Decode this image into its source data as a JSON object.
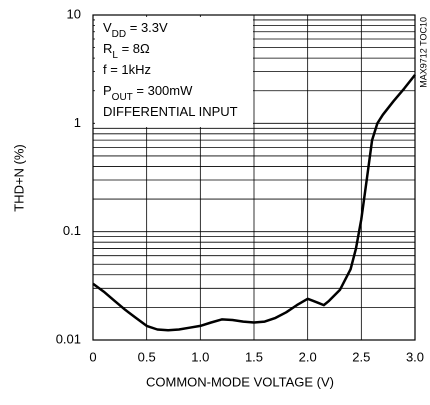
{
  "chart_data": {
    "type": "line",
    "x_label": "COMMON-MODE VOLTAGE (V)",
    "y_label": "THD+N (%)",
    "side_label": "MAX9712 TOC10",
    "annotations": [
      [
        "V",
        "DD",
        " = 3.3V"
      ],
      [
        "R",
        "L",
        " = 8Ω"
      ],
      [
        "f = 1kHz"
      ],
      [
        "P",
        "OUT",
        " = 300mW"
      ],
      [
        "DIFFERENTIAL INPUT"
      ]
    ],
    "x": [
      0,
      0.1,
      0.2,
      0.3,
      0.4,
      0.5,
      0.6,
      0.7,
      0.8,
      0.9,
      1.0,
      1.1,
      1.2,
      1.3,
      1.4,
      1.5,
      1.6,
      1.7,
      1.8,
      1.9,
      2.0,
      2.05,
      2.1,
      2.15,
      2.2,
      2.3,
      2.4,
      2.45,
      2.5,
      2.55,
      2.6,
      2.65,
      2.7,
      2.8,
      2.9,
      3.0
    ],
    "series": [
      {
        "color": "#000000",
        "values": [
          0.033,
          0.028,
          0.023,
          0.019,
          0.016,
          0.0135,
          0.0125,
          0.0123,
          0.0125,
          0.013,
          0.0135,
          0.0145,
          0.0155,
          0.0153,
          0.0148,
          0.0145,
          0.0148,
          0.016,
          0.018,
          0.021,
          0.024,
          0.023,
          0.022,
          0.021,
          0.023,
          0.029,
          0.045,
          0.07,
          0.13,
          0.3,
          0.7,
          1.0,
          1.2,
          1.6,
          2.1,
          2.8
        ]
      }
    ],
    "xlim": [
      0,
      3
    ],
    "xticks": [
      0,
      0.5,
      {
        "value": 1,
        "label": "1.0"
      },
      1.5,
      {
        "value": 2,
        "label": "2.0"
      },
      2.5,
      {
        "value": 3,
        "label": "3.0"
      }
    ],
    "ylim": [
      0.01,
      10
    ],
    "yticks": [
      0.01,
      0.1,
      1,
      10
    ],
    "log_y": true,
    "grid": true,
    "minor_grid": true
  }
}
